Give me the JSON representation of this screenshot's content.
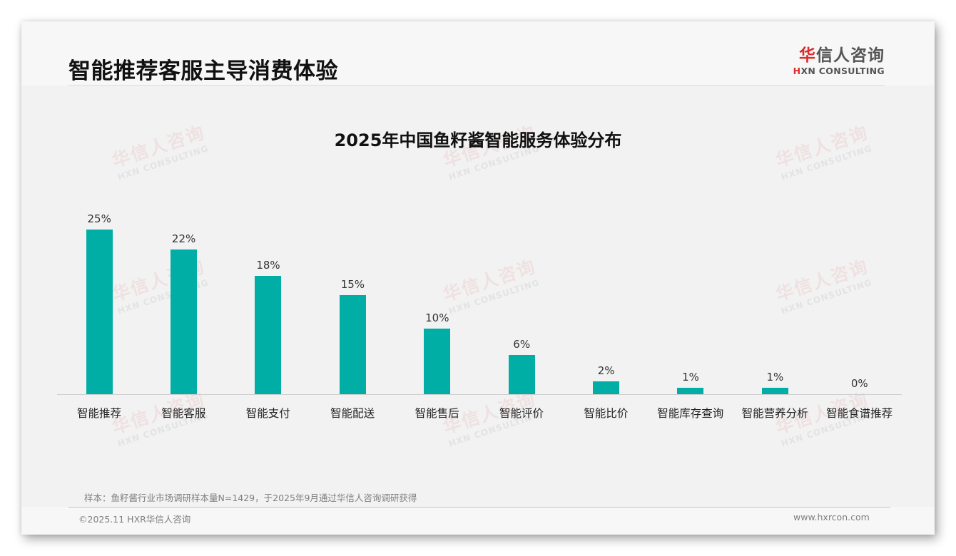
{
  "header": {
    "title": "智能推荐客服主导消费体验",
    "logo": {
      "cn_accent": "华",
      "cn_rest": "信人咨询",
      "en_accent": "H",
      "en_rest": "XN CONSULTING"
    }
  },
  "watermark": {
    "cn": "华信人咨询",
    "en": "HXN CONSULTING"
  },
  "colors": {
    "bar": "#00aea6",
    "brand_red": "#e02a2a",
    "background": "#f2f2f2"
  },
  "chart_data": {
    "type": "bar",
    "title": "2025年中国鱼籽酱智能服务体验分布",
    "xlabel": "",
    "ylabel": "",
    "ylim": [
      0,
      25
    ],
    "grid": false,
    "legend": null,
    "value_format": "percent",
    "categories": [
      "智能推荐",
      "智能客服",
      "智能支付",
      "智能配送",
      "智能售后",
      "智能评价",
      "智能比价",
      "智能库存查询",
      "智能营养分析",
      "智能食谱推荐"
    ],
    "values": [
      25,
      22,
      18,
      15,
      10,
      6,
      2,
      1,
      1,
      0
    ],
    "labels": [
      "25%",
      "22%",
      "18%",
      "15%",
      "10%",
      "6%",
      "2%",
      "1%",
      "1%",
      "0%"
    ]
  },
  "footer": {
    "source_note": "样本：鱼籽酱行业市场调研样本量N=1429，于2025年9月通过华信人咨询调研获得",
    "copyright": "©2025.11 HXR华信人咨询",
    "website": "www.hxrcon.com"
  }
}
